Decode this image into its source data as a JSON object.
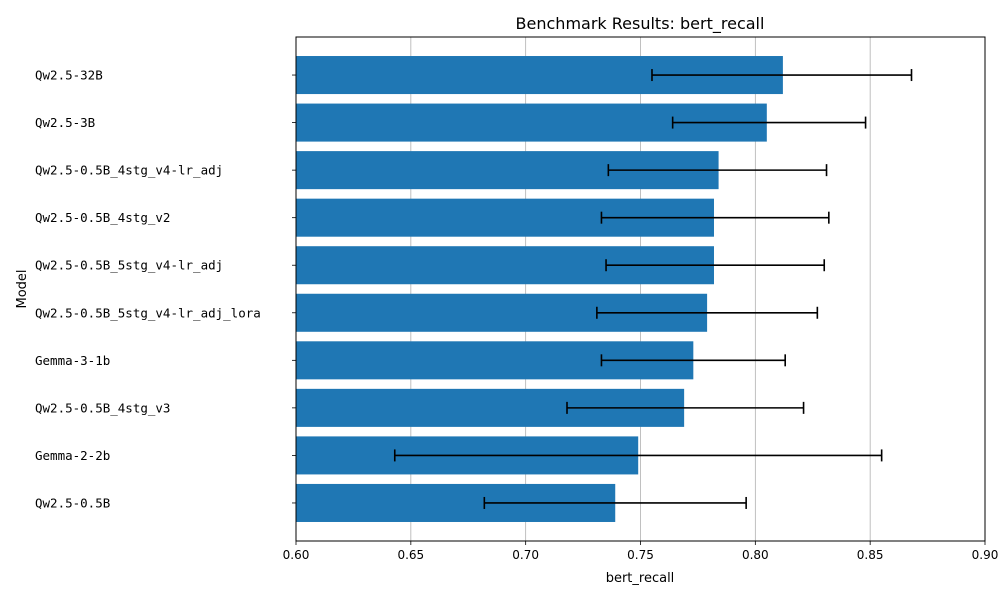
{
  "chart_data": {
    "type": "bar",
    "orientation": "horizontal",
    "title": "Benchmark Results: bert_recall",
    "xlabel": "bert_recall",
    "ylabel": "Model",
    "xlim": [
      0.6,
      0.9
    ],
    "xticks": [
      "0.60",
      "0.65",
      "0.70",
      "0.75",
      "0.80",
      "0.85",
      "0.90"
    ],
    "grid": "x",
    "bar_color": "#1f77b4",
    "categories": [
      "Qw2.5-32B",
      "Qw2.5-3B",
      "Qw2.5-0.5B_4stg_v4-lr_adj",
      "Qw2.5-0.5B_4stg_v2",
      "Qw2.5-0.5B_5stg_v4-lr_adj",
      "Qw2.5-0.5B_5stg_v4-lr_adj_lora",
      "Gemma-3-1b",
      "Qw2.5-0.5B_4stg_v3",
      "Gemma-2-2b",
      "Qw2.5-0.5B"
    ],
    "values": [
      0.812,
      0.805,
      0.784,
      0.782,
      0.782,
      0.779,
      0.773,
      0.769,
      0.749,
      0.739
    ],
    "error_low": [
      0.755,
      0.764,
      0.736,
      0.733,
      0.735,
      0.731,
      0.733,
      0.718,
      0.643,
      0.682
    ],
    "error_high": [
      0.868,
      0.848,
      0.831,
      0.832,
      0.83,
      0.827,
      0.813,
      0.821,
      0.855,
      0.796
    ]
  }
}
